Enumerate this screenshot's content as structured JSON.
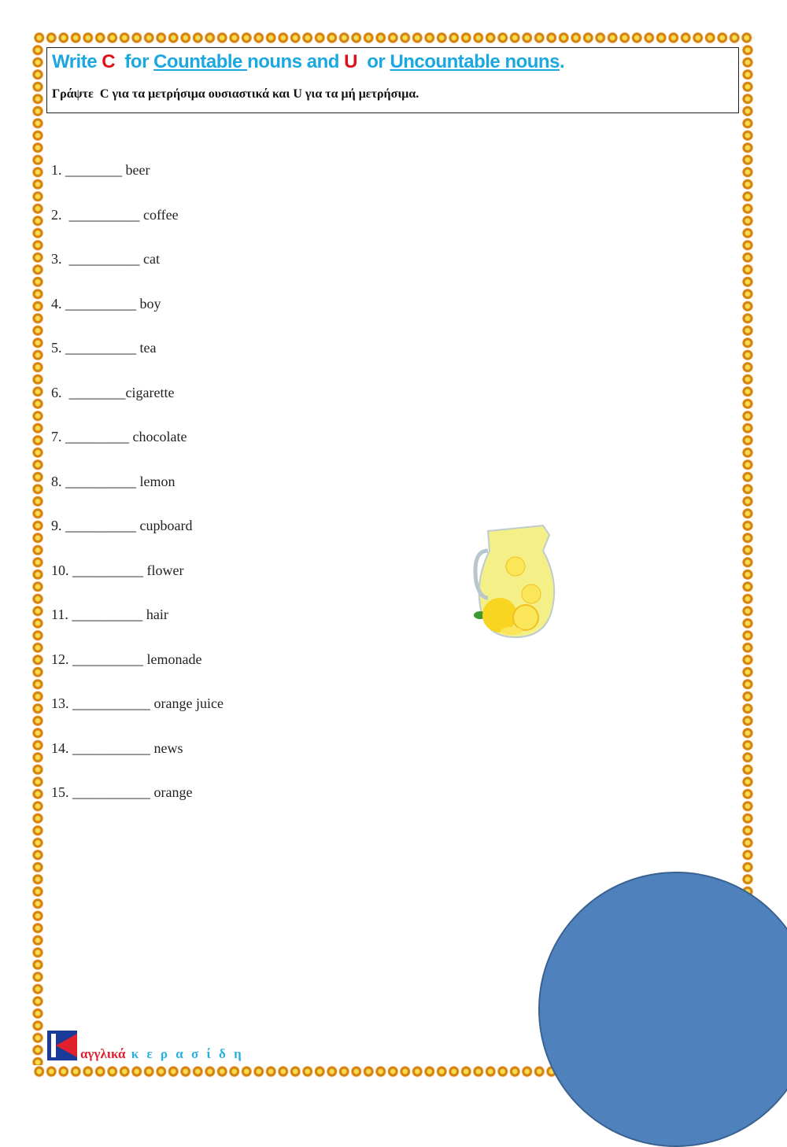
{
  "header": {
    "title_parts": [
      "Write ",
      "C",
      "  for ",
      "Countable ",
      "nouns and ",
      "U",
      "  or ",
      "Uncountable nouns",
      "."
    ],
    "subtitle": "Γράψτε  C για τα μετρήσιμα ουσιαστικά και U για τα μή μετρήσιμα."
  },
  "items": [
    "1. ________ beer",
    "2.  __________ coffee",
    "3.  __________ cat",
    "4. __________ boy",
    "5. __________ tea",
    "6.  ________cigarette",
    "7. _________ chocolate",
    "8. __________ lemon",
    "9. __________ cupboard",
    "10. __________ flower",
    "11. __________ hair",
    "12. __________ lemonade",
    "13. ___________ orange juice",
    "14. ___________ news",
    "15. ___________ orange"
  ],
  "footer": {
    "brand_red": "αγγλικά",
    "brand_blue": " κ ε ρ α σ ί δ η"
  },
  "colors": {
    "title": "#1ba8e0",
    "accent_red": "#e0101a",
    "circle": "#4f81bd"
  }
}
